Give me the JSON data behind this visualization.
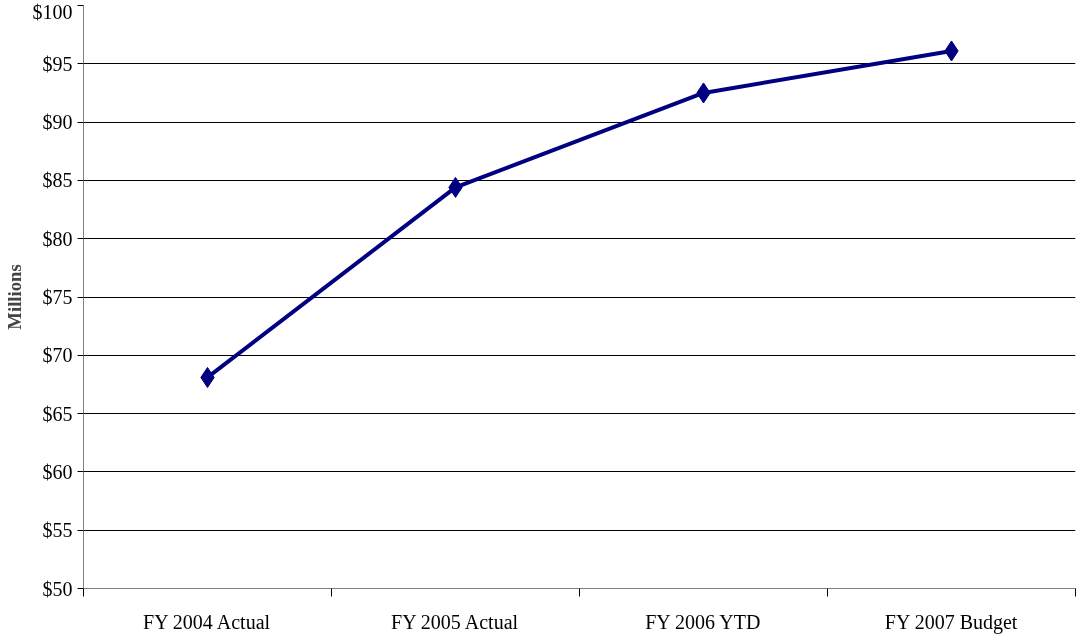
{
  "chart_data": {
    "type": "line",
    "ylabel": "Millions",
    "categories": [
      "FY 2004 Actual",
      "FY 2005 Actual",
      "FY 2006 YTD",
      "FY 2007 Budget"
    ],
    "series": [
      {
        "color": "#000080",
        "values": [
          68.1,
          84.4,
          92.5,
          96.1
        ]
      }
    ],
    "ylim": [
      50,
      100
    ],
    "yticks": [
      {
        "value": 50,
        "label": "$50"
      },
      {
        "value": 55,
        "label": "$55"
      },
      {
        "value": 60,
        "label": "$60"
      },
      {
        "value": 65,
        "label": "$65"
      },
      {
        "value": 70,
        "label": "$70"
      },
      {
        "value": 75,
        "label": "$75"
      },
      {
        "value": 80,
        "label": "$80"
      },
      {
        "value": 85,
        "label": "$85"
      },
      {
        "value": 90,
        "label": "$90"
      },
      {
        "value": 95,
        "label": "$95"
      },
      {
        "value": 100,
        "label": "$100"
      }
    ],
    "grid": "y",
    "marker": "diamond",
    "line_style": "solid"
  }
}
